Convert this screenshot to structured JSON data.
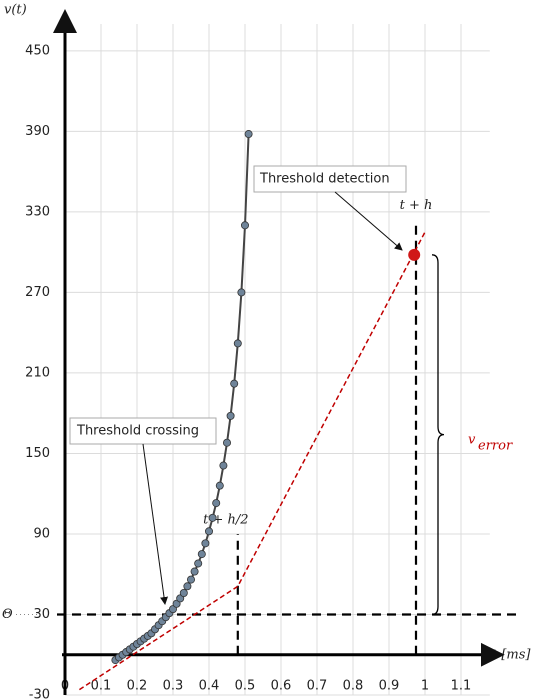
{
  "chart_data": {
    "type": "line",
    "y_label": "v(t)",
    "x_label": "t [ms]",
    "xlim": [
      0,
      1.18
    ],
    "ylim": [
      -30,
      470
    ],
    "xticks": [
      0,
      0.1,
      0.2,
      0.3,
      0.4,
      0.5,
      0.6,
      0.7,
      0.8,
      0.9,
      1.0,
      1.1
    ],
    "yticks": [
      -30,
      30,
      90,
      150,
      210,
      270,
      330,
      390,
      450
    ],
    "grid": true,
    "x": [
      0.14,
      0.15,
      0.16,
      0.17,
      0.18,
      0.19,
      0.2,
      0.21,
      0.22,
      0.23,
      0.24,
      0.25,
      0.26,
      0.27,
      0.28,
      0.29,
      0.3,
      0.31,
      0.32,
      0.33,
      0.34,
      0.35,
      0.36,
      0.37,
      0.38,
      0.39,
      0.4,
      0.41,
      0.42,
      0.43,
      0.44,
      0.45,
      0.46,
      0.47,
      0.48,
      0.49,
      0.5,
      0.51
    ],
    "series": [
      {
        "color": "#6f8499",
        "values": [
          -4,
          -2,
          0,
          2,
          4,
          6,
          8,
          10,
          12,
          14,
          16,
          19,
          22,
          25,
          28,
          31,
          34,
          38,
          42,
          46,
          51,
          56,
          62,
          68,
          75,
          83,
          92,
          102,
          113,
          126,
          141,
          158,
          178,
          202,
          232,
          270,
          320,
          388
        ]
      }
    ],
    "error_line": {
      "color": "#c00000",
      "x": [
        0.04,
        0.48,
        1.0
      ],
      "values": [
        -26,
        51,
        315
      ]
    },
    "threshold": 30,
    "threshold_label": "Θ",
    "step_half": {
      "label": "t + h/2",
      "x": 0.48,
      "top": 90
    },
    "step_full": {
      "label": "t + h",
      "x": 0.975,
      "top": 320
    },
    "detection": {
      "label": "Threshold detection",
      "x": 0.97,
      "y": 298,
      "color": "#d01818"
    },
    "crossing": {
      "label": "Threshold crossing"
    },
    "error_label": "v",
    "error_subscript": "error"
  }
}
